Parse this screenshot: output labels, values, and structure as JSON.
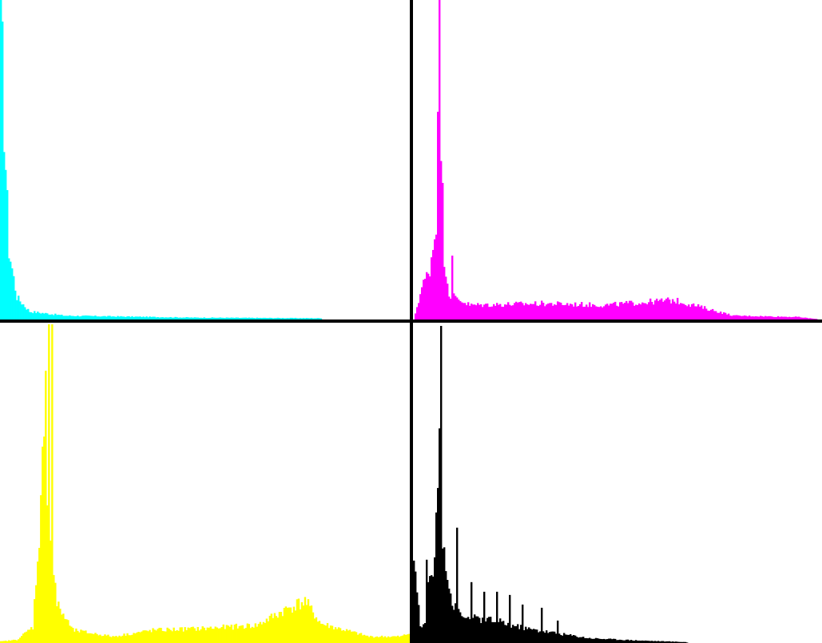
{
  "chart_data": [
    {
      "type": "histogram",
      "channel": "cyan",
      "color": "#00ffff",
      "x_range": [
        0,
        255
      ],
      "peaks": [
        [
          0,
          1.0
        ],
        [
          2,
          0.62
        ],
        [
          5,
          0.22
        ],
        [
          10,
          0.07
        ],
        [
          18,
          0.025
        ],
        [
          40,
          0.012
        ],
        [
          120,
          0.006
        ],
        [
          200,
          0.004
        ]
      ],
      "spikes": [],
      "cutoff": 200
    },
    {
      "type": "histogram",
      "channel": "magenta",
      "color": "#ff00ff",
      "x_range": [
        0,
        255
      ],
      "peaks": [
        [
          0,
          0.0
        ],
        [
          5,
          0.1
        ],
        [
          10,
          0.16
        ],
        [
          14,
          0.3
        ],
        [
          15,
          0.78
        ],
        [
          16,
          1.0
        ],
        [
          17,
          0.55
        ],
        [
          19,
          0.2
        ],
        [
          22,
          0.08
        ],
        [
          35,
          0.045
        ],
        [
          80,
          0.05
        ],
        [
          120,
          0.045
        ],
        [
          160,
          0.06
        ],
        [
          163,
          0.06
        ],
        [
          175,
          0.045
        ],
        [
          200,
          0.012
        ],
        [
          240,
          0.008
        ],
        [
          255,
          0.0
        ]
      ],
      "spikes": [
        [
          16,
          1.0
        ],
        [
          24,
          0.2
        ]
      ],
      "cutoff": 255
    },
    {
      "type": "histogram",
      "channel": "yellow",
      "color": "#ffff00",
      "x_range": [
        0,
        255
      ],
      "peaks": [
        [
          0,
          0.005
        ],
        [
          10,
          0.01
        ],
        [
          20,
          0.05
        ],
        [
          24,
          0.35
        ],
        [
          26,
          0.55
        ],
        [
          28,
          0.6
        ],
        [
          31,
          0.33
        ],
        [
          35,
          0.12
        ],
        [
          45,
          0.04
        ],
        [
          70,
          0.02
        ],
        [
          95,
          0.04
        ],
        [
          125,
          0.045
        ],
        [
          160,
          0.055
        ],
        [
          180,
          0.11
        ],
        [
          190,
          0.13
        ],
        [
          200,
          0.06
        ],
        [
          230,
          0.02
        ],
        [
          250,
          0.02
        ],
        [
          255,
          0.03
        ]
      ],
      "spikes": [
        [
          28,
          0.85
        ],
        [
          30,
          0.995
        ],
        [
          32,
          0.995
        ]
      ],
      "cutoff": 255
    },
    {
      "type": "histogram",
      "channel": "black",
      "color": "#000000",
      "x_range": [
        0,
        255
      ],
      "peaks": [
        [
          0,
          0.22
        ],
        [
          1,
          0.25
        ],
        [
          4,
          0.05
        ],
        [
          8,
          0.06
        ],
        [
          10,
          0.18
        ],
        [
          13,
          0.25
        ],
        [
          14,
          0.4
        ],
        [
          16,
          0.55
        ],
        [
          17,
          0.65
        ],
        [
          18,
          0.35
        ],
        [
          21,
          0.22
        ],
        [
          24,
          0.12
        ],
        [
          30,
          0.08
        ],
        [
          50,
          0.07
        ],
        [
          70,
          0.045
        ],
        [
          90,
          0.03
        ],
        [
          110,
          0.015
        ],
        [
          140,
          0.008
        ],
        [
          170,
          0.003
        ],
        [
          172,
          0.0
        ]
      ],
      "spikes": [
        [
          8,
          0.26
        ],
        [
          9,
          0.19
        ],
        [
          13,
          0.26
        ],
        [
          16,
          0.67
        ],
        [
          17,
          0.99
        ],
        [
          27,
          0.36
        ],
        [
          36,
          0.19
        ],
        [
          44,
          0.16
        ],
        [
          52,
          0.16
        ],
        [
          60,
          0.15
        ],
        [
          68,
          0.12
        ],
        [
          80,
          0.11
        ],
        [
          90,
          0.07
        ]
      ],
      "cutoff": 172
    }
  ]
}
